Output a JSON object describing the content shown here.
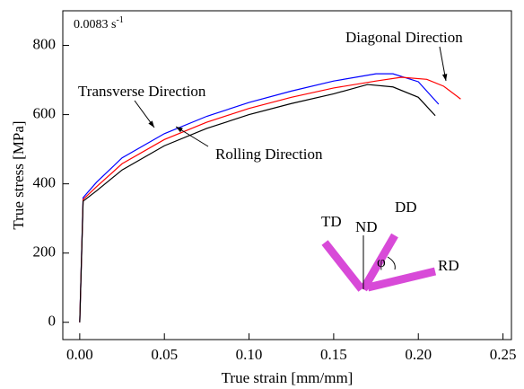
{
  "chart_data": {
    "type": "line",
    "annotation": {
      "text": "0.0083 s",
      "superscript": "-1"
    },
    "xlabel": "True strain [mm/mm]",
    "ylabel": "True stress [MPa]",
    "xlim": [
      -0.01,
      0.255
    ],
    "ylim": [
      -50,
      900
    ],
    "xticks": [
      {
        "value": 0,
        "label": "0.00"
      },
      {
        "value": 0.05,
        "label": "0.05"
      },
      {
        "value": 0.1,
        "label": "0.10"
      },
      {
        "value": 0.15,
        "label": "0.15"
      },
      {
        "value": 0.2,
        "label": "0.20"
      },
      {
        "value": 0.25,
        "label": "0.25"
      }
    ],
    "yticks": [
      0,
      200,
      400,
      600,
      800
    ],
    "series": [
      {
        "name": "Transverse Direction",
        "color": "#0000ff",
        "x": [
          0,
          0.002,
          0.01,
          0.025,
          0.05,
          0.075,
          0.1,
          0.125,
          0.15,
          0.175,
          0.185,
          0.2,
          0.212
        ],
        "values": [
          0,
          360,
          405,
          475,
          545,
          595,
          635,
          668,
          697,
          718,
          718,
          695,
          630
        ]
      },
      {
        "name": "Diagonal Direction",
        "color": "#ff0000",
        "x": [
          0,
          0.002,
          0.01,
          0.025,
          0.05,
          0.075,
          0.1,
          0.125,
          0.15,
          0.175,
          0.19,
          0.205,
          0.215,
          0.225
        ],
        "values": [
          0,
          355,
          392,
          458,
          528,
          578,
          618,
          650,
          677,
          697,
          708,
          702,
          682,
          645
        ]
      },
      {
        "name": "Rolling Direction",
        "color": "#000000",
        "x": [
          0,
          0.002,
          0.01,
          0.025,
          0.05,
          0.075,
          0.1,
          0.125,
          0.15,
          0.17,
          0.185,
          0.2,
          0.21
        ],
        "values": [
          0,
          350,
          380,
          440,
          510,
          560,
          600,
          632,
          660,
          687,
          680,
          650,
          597
        ]
      }
    ],
    "inset_labels": {
      "td": "TD",
      "nd": "ND",
      "dd": "DD",
      "rd": "RD",
      "angle": "φ"
    }
  }
}
